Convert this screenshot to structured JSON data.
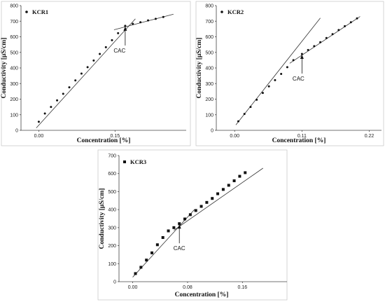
{
  "chart_data": [
    {
      "type": "scatter",
      "legend": "KCR1",
      "legend_position": "top-left",
      "marker": "dot",
      "xlabel": "Concentration [%]",
      "ylabel": "Conductivity [μS/cm]",
      "xlim": [
        -0.035,
        0.29
      ],
      "ylim": [
        0,
        800
      ],
      "xticks": [
        "0.00",
        "0.15"
      ],
      "xtick_values": [
        0.0,
        0.15
      ],
      "yticks": [
        "0",
        "100",
        "200",
        "300",
        "400",
        "500",
        "600",
        "700",
        "800"
      ],
      "grid": false,
      "points": [
        {
          "x": 0.0,
          "y": 55
        },
        {
          "x": 0.012,
          "y": 108
        },
        {
          "x": 0.024,
          "y": 150
        },
        {
          "x": 0.036,
          "y": 192
        },
        {
          "x": 0.048,
          "y": 234
        },
        {
          "x": 0.06,
          "y": 276
        },
        {
          "x": 0.072,
          "y": 320
        },
        {
          "x": 0.084,
          "y": 364
        },
        {
          "x": 0.096,
          "y": 405
        },
        {
          "x": 0.108,
          "y": 448
        },
        {
          "x": 0.12,
          "y": 490
        },
        {
          "x": 0.132,
          "y": 533
        },
        {
          "x": 0.144,
          "y": 578
        },
        {
          "x": 0.156,
          "y": 623
        },
        {
          "x": 0.17,
          "y": 670
        },
        {
          "x": 0.185,
          "y": 683
        },
        {
          "x": 0.2,
          "y": 693
        },
        {
          "x": 0.215,
          "y": 705
        },
        {
          "x": 0.23,
          "y": 715
        },
        {
          "x": 0.245,
          "y": 727
        }
      ],
      "fit_lines": [
        {
          "x1": -0.005,
          "y1": 15,
          "x2": 0.19,
          "y2": 715
        },
        {
          "x1": 0.148,
          "y1": 645,
          "x2": 0.265,
          "y2": 745
        }
      ],
      "annotation": {
        "text": "CAC",
        "x": 0.17,
        "y": 670
      }
    },
    {
      "type": "scatter",
      "legend": "KCR2",
      "legend_position": "top-left",
      "marker": "dot",
      "xlabel": "Concentration [%]",
      "ylabel": "Conductivity [μS/cm]",
      "xlim": [
        -0.03,
        0.24
      ],
      "ylim": [
        0,
        800
      ],
      "xticks": [
        "0.00",
        "0.11",
        "0.22"
      ],
      "xtick_values": [
        0.0,
        0.11,
        0.22
      ],
      "yticks": [
        "0",
        "100",
        "200",
        "300",
        "400",
        "500",
        "600",
        "700",
        "800"
      ],
      "grid": false,
      "points": [
        {
          "x": 0.006,
          "y": 58
        },
        {
          "x": 0.016,
          "y": 105
        },
        {
          "x": 0.026,
          "y": 150
        },
        {
          "x": 0.036,
          "y": 196
        },
        {
          "x": 0.046,
          "y": 240
        },
        {
          "x": 0.056,
          "y": 282
        },
        {
          "x": 0.066,
          "y": 322
        },
        {
          "x": 0.076,
          "y": 362
        },
        {
          "x": 0.086,
          "y": 405
        },
        {
          "x": 0.096,
          "y": 450
        },
        {
          "x": 0.11,
          "y": 490
        },
        {
          "x": 0.12,
          "y": 515
        },
        {
          "x": 0.13,
          "y": 540
        },
        {
          "x": 0.14,
          "y": 565
        },
        {
          "x": 0.15,
          "y": 592
        },
        {
          "x": 0.16,
          "y": 617
        },
        {
          "x": 0.17,
          "y": 643
        },
        {
          "x": 0.18,
          "y": 668
        },
        {
          "x": 0.19,
          "y": 693
        },
        {
          "x": 0.2,
          "y": 718
        }
      ],
      "fit_lines": [
        {
          "x1": 0.002,
          "y1": 35,
          "x2": 0.14,
          "y2": 720
        },
        {
          "x1": 0.09,
          "y1": 430,
          "x2": 0.205,
          "y2": 730
        }
      ],
      "annotation": {
        "text": "CAC",
        "x": 0.11,
        "y": 490
      }
    },
    {
      "type": "scatter",
      "legend": "KCR3",
      "legend_position": "top-left",
      "marker": "square",
      "xlabel": "Concentration [%]",
      "ylabel": "Conductivity [μS/cm]",
      "xlim": [
        -0.02,
        0.225
      ],
      "ylim": [
        0,
        700
      ],
      "xticks": [
        "0.00",
        "0.08",
        "0.16"
      ],
      "xtick_values": [
        0.0,
        0.08,
        0.16
      ],
      "yticks": [
        "0",
        "100",
        "200",
        "300",
        "400",
        "500",
        "600",
        "700"
      ],
      "grid": false,
      "points": [
        {
          "x": 0.004,
          "y": 45
        },
        {
          "x": 0.012,
          "y": 80
        },
        {
          "x": 0.02,
          "y": 120
        },
        {
          "x": 0.028,
          "y": 160
        },
        {
          "x": 0.036,
          "y": 205
        },
        {
          "x": 0.044,
          "y": 245
        },
        {
          "x": 0.052,
          "y": 282
        },
        {
          "x": 0.06,
          "y": 300
        },
        {
          "x": 0.068,
          "y": 322
        },
        {
          "x": 0.076,
          "y": 348
        },
        {
          "x": 0.084,
          "y": 372
        },
        {
          "x": 0.092,
          "y": 395
        },
        {
          "x": 0.1,
          "y": 418
        },
        {
          "x": 0.108,
          "y": 440
        },
        {
          "x": 0.116,
          "y": 462
        },
        {
          "x": 0.124,
          "y": 488
        },
        {
          "x": 0.132,
          "y": 512
        },
        {
          "x": 0.14,
          "y": 535
        },
        {
          "x": 0.148,
          "y": 560
        },
        {
          "x": 0.156,
          "y": 585
        },
        {
          "x": 0.164,
          "y": 605
        }
      ],
      "fit_lines": [
        {
          "x1": 0.0,
          "y1": 25,
          "x2": 0.09,
          "y2": 400
        },
        {
          "x1": 0.06,
          "y1": 285,
          "x2": 0.19,
          "y2": 630
        }
      ],
      "annotation": {
        "text": "CAC",
        "x": 0.068,
        "y": 322
      }
    }
  ]
}
